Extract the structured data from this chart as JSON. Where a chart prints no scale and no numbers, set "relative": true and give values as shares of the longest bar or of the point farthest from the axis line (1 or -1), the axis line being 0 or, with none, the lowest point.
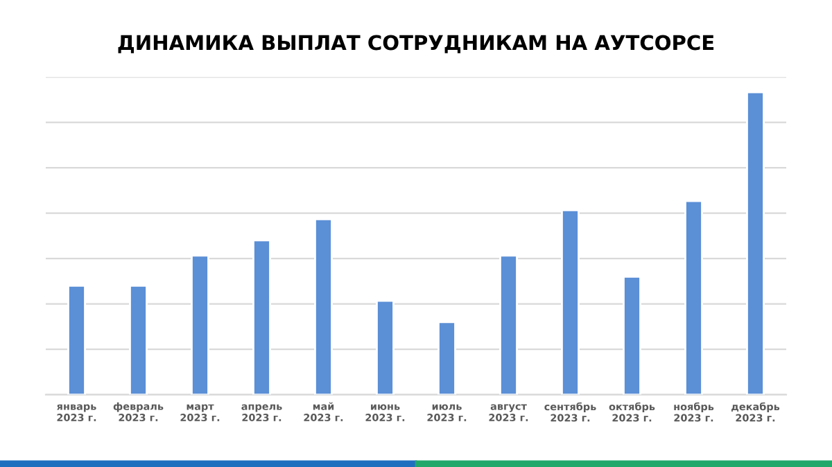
{
  "chart_data": {
    "type": "bar",
    "title": "ДИНАМИКА ВЫПЛАТ СОТРУДНИКАМ НА АУТСОРСЕ",
    "categories": [
      "январь\n2023 г.",
      "февраль\n2023 г.",
      "март\n2023 г.",
      "апрель\n2023 г.",
      "май\n2023 г.",
      "июнь\n2023 г.",
      "июль\n2023 г.",
      "август\n2023 г.",
      "сентябрь\n2023 г.",
      "октябрь\n2023 г.",
      "ноябрь\n2023 г.",
      "декабрь\n2023 г."
    ],
    "values": [
      0.36,
      0.36,
      0.46,
      0.51,
      0.58,
      0.31,
      0.24,
      0.46,
      0.61,
      0.39,
      0.64,
      1
    ],
    "color": "#5b8fd6",
    "relative": true,
    "grid": "y"
  }
}
